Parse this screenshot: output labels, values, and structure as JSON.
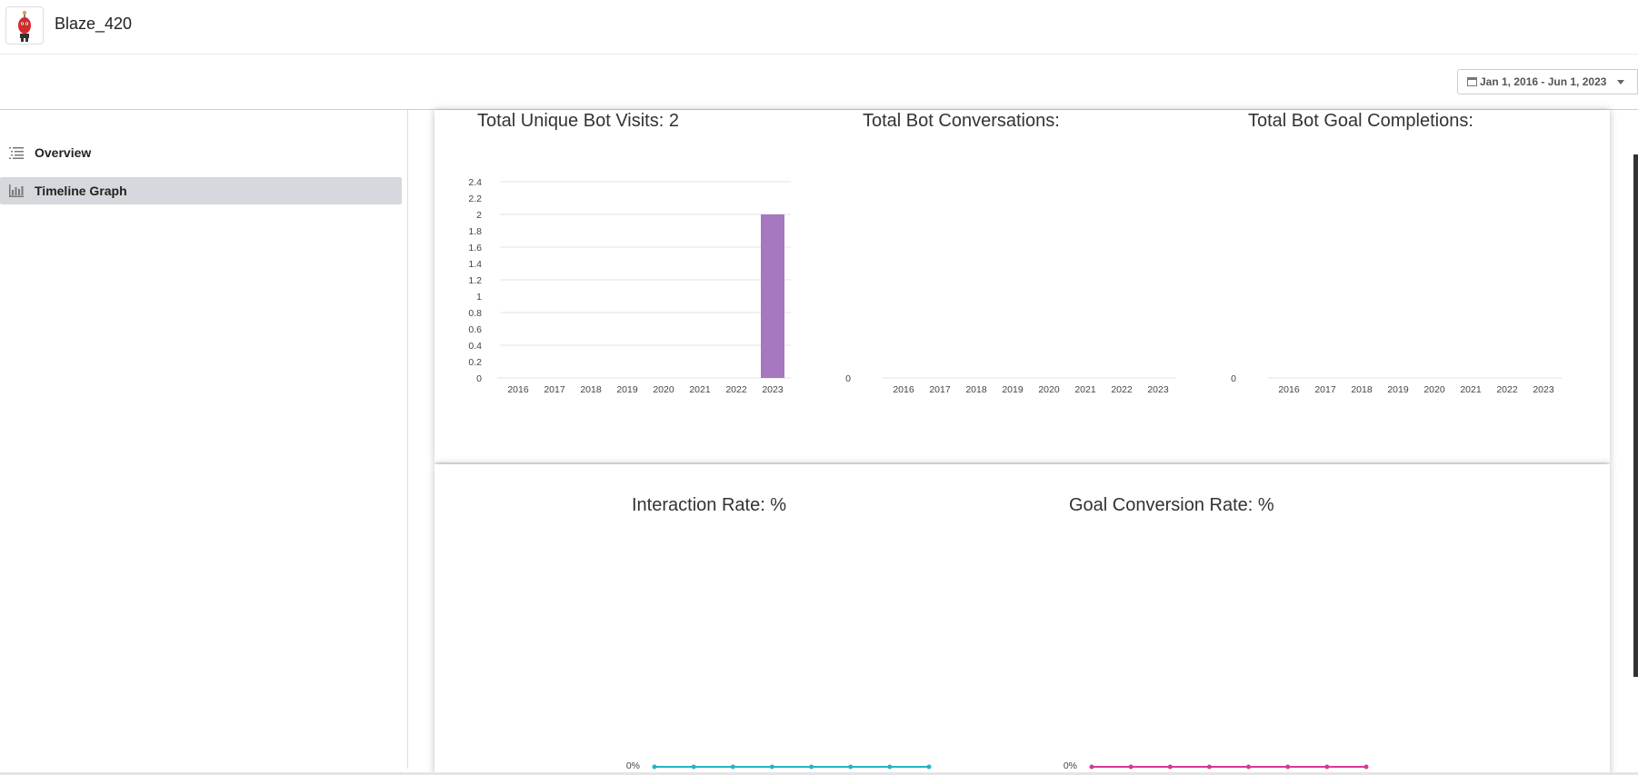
{
  "header": {
    "brand": "Blaze_420",
    "logo_icon": "red-robot-avatar-icon"
  },
  "filter": {
    "date_range": "Jan 1, 2016 - Jun 1, 2023",
    "icon": "calendar-icon"
  },
  "sidebar": {
    "items": [
      {
        "label": "Overview",
        "icon": "list-icon",
        "active": false
      },
      {
        "label": "Timeline Graph",
        "icon": "bar-chart-icon",
        "active": true
      }
    ]
  },
  "chart_data": [
    {
      "type": "bar",
      "title": "Total Unique Bot Visits: 2",
      "categories": [
        "2016",
        "2017",
        "2018",
        "2019",
        "2020",
        "2021",
        "2022",
        "2023"
      ],
      "values": [
        0,
        0,
        0,
        0,
        0,
        0,
        0,
        2
      ],
      "ylim": [
        0,
        2.4
      ],
      "yticks": [
        "0",
        "0.2",
        "0.4",
        "0.6",
        "0.8",
        "1",
        "1.2",
        "1.4",
        "1.6",
        "1.8",
        "2",
        "2.2",
        "2.4"
      ],
      "color": "#a678bf",
      "grid": true
    },
    {
      "type": "bar",
      "title": "Total Bot Conversations:",
      "categories": [
        "2016",
        "2017",
        "2018",
        "2019",
        "2020",
        "2021",
        "2022",
        "2023"
      ],
      "values": [
        0,
        0,
        0,
        0,
        0,
        0,
        0,
        0
      ],
      "yticks": [
        "0"
      ],
      "grid": false
    },
    {
      "type": "bar",
      "title": "Total Bot Goal Completions:",
      "categories": [
        "2016",
        "2017",
        "2018",
        "2019",
        "2020",
        "2021",
        "2022",
        "2023"
      ],
      "values": [
        0,
        0,
        0,
        0,
        0,
        0,
        0,
        0
      ],
      "yticks": [
        "0"
      ],
      "grid": false
    },
    {
      "type": "line",
      "title": "Interaction Rate: %",
      "values": [
        0,
        0,
        0,
        0,
        0,
        0,
        0,
        0
      ],
      "ytick": "0%",
      "color": "#26b3c4"
    },
    {
      "type": "line",
      "title": "Goal Conversion Rate: %",
      "values": [
        0,
        0,
        0,
        0,
        0,
        0,
        0,
        0
      ],
      "ytick": "0%",
      "color": "#d6389a"
    }
  ]
}
